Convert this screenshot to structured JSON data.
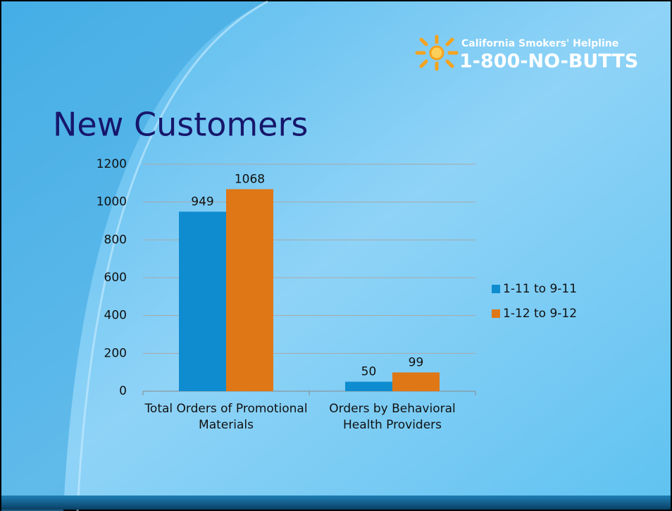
{
  "logo": {
    "tagline": "California Smokers' Helpline",
    "phone": "1-800-NO-BUTTS"
  },
  "chart_data": {
    "type": "bar",
    "title": "New Customers",
    "categories": [
      "Total Orders of Promotional Materials",
      "Orders by Behavioral Health Providers"
    ],
    "series": [
      {
        "name": "1-11 to 9-11",
        "color": "#0e8ccf",
        "values": [
          949,
          50
        ]
      },
      {
        "name": "1-12 to 9-12",
        "color": "#df7716",
        "values": [
          1068,
          99
        ]
      }
    ],
    "ylim": [
      0,
      1200
    ],
    "yticks": [
      0,
      200,
      400,
      600,
      800,
      1000,
      1200
    ],
    "grid": true,
    "legend": "right"
  }
}
